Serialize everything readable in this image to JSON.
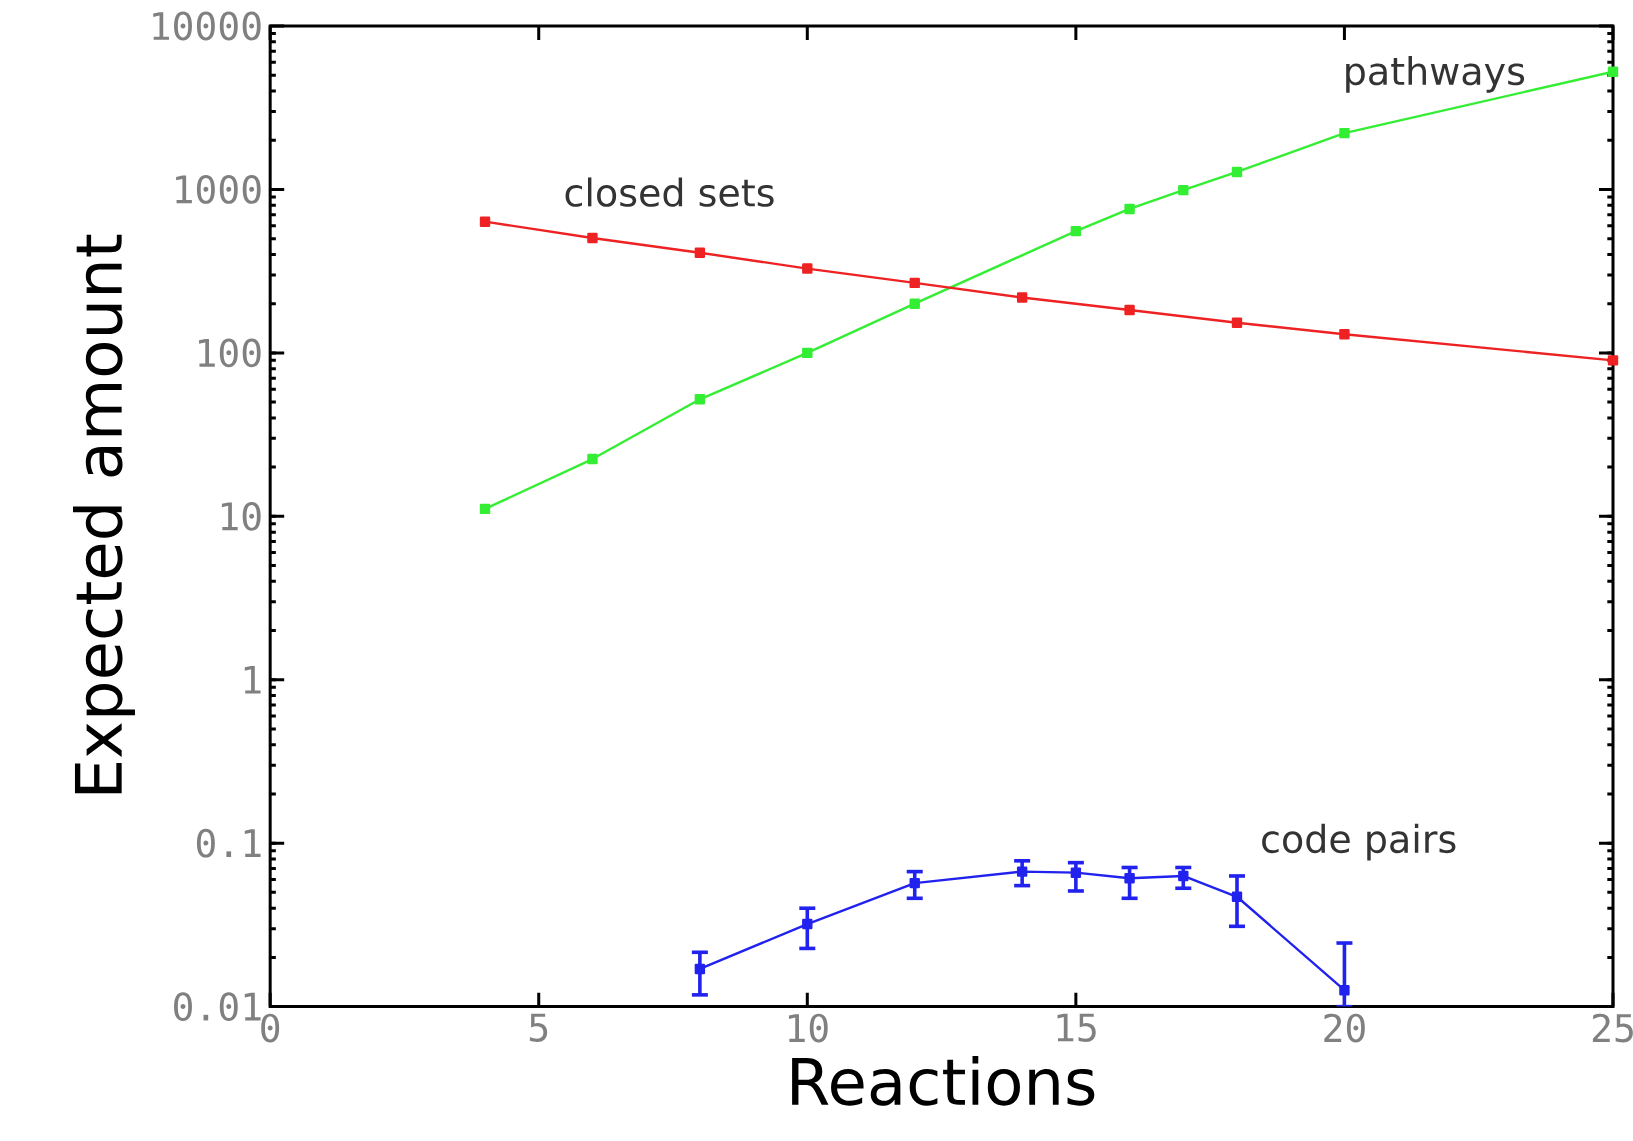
{
  "chart_data": {
    "type": "line",
    "xlabel": "Reactions",
    "ylabel": "Expected amount",
    "log": "y",
    "xlim": [
      0,
      25
    ],
    "xticks": [
      0,
      5,
      10,
      15,
      20,
      25
    ],
    "ylim": [
      0.01,
      10000
    ],
    "yticks": [
      0.01,
      0.1,
      1,
      10,
      100,
      1000,
      10000
    ],
    "marker": "square",
    "line_style": "solid",
    "series": [
      {
        "name": "pathways",
        "color": "#33ee33",
        "x": [
          4,
          6,
          8,
          10,
          12,
          15,
          16,
          17,
          18,
          20,
          25
        ],
        "values": [
          11.1,
          22.4,
          52,
          100,
          200,
          556,
          760,
          990,
          1280,
          2210,
          5250
        ]
      },
      {
        "name": "closed sets",
        "color": "#ee2222",
        "x": [
          4,
          6,
          8,
          10,
          12,
          14,
          16,
          18,
          20,
          25
        ],
        "values": [
          635,
          505,
          410,
          328,
          268,
          218,
          183,
          153,
          130,
          90
        ]
      },
      {
        "name": "code pairs",
        "color": "#2222ee",
        "x": [
          8,
          10,
          12,
          14,
          15,
          16,
          17,
          18,
          20
        ],
        "values": [
          0.017,
          0.032,
          0.057,
          0.067,
          0.066,
          0.061,
          0.063,
          0.047,
          0.0126
        ],
        "errors": [
          [
            0.0118,
            0.0215
          ],
          [
            0.0227,
            0.04
          ],
          [
            0.046,
            0.067
          ],
          [
            0.055,
            0.078
          ],
          [
            0.051,
            0.076
          ],
          [
            0.046,
            0.071
          ],
          [
            0.053,
            0.071
          ],
          [
            0.031,
            0.063
          ],
          [
            0.01,
            0.0245
          ]
        ]
      }
    ]
  }
}
